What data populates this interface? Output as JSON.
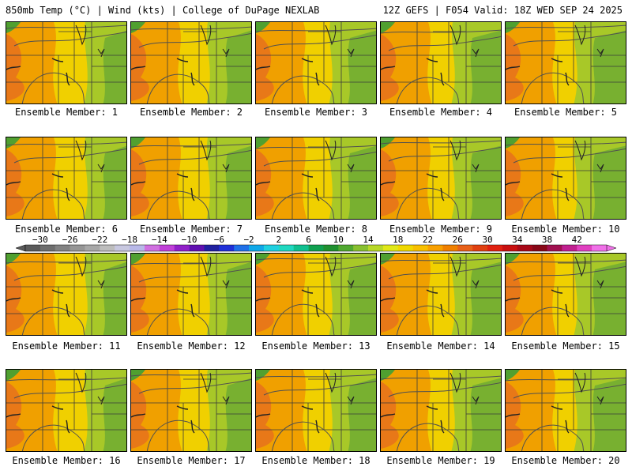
{
  "header": {
    "left": "850mb Temp (°C) | Wind (kts) | College of DuPage NEXLAB",
    "right": "12Z GEFS | F054 Valid: 18Z WED SEP 24 2025"
  },
  "caption_prefix": "Ensemble Member: ",
  "members": [
    1,
    2,
    3,
    4,
    5,
    6,
    7,
    8,
    9,
    10,
    11,
    12,
    13,
    14,
    15,
    16,
    17,
    18,
    19,
    20
  ],
  "colorbar": {
    "tick_labels": [
      "−30",
      "−26",
      "−22",
      "−18",
      "−14",
      "−10",
      "−6",
      "−2",
      "2",
      "6",
      "10",
      "14",
      "18",
      "22",
      "26",
      "30",
      "34",
      "38",
      "42"
    ],
    "range": [
      -32,
      44
    ],
    "step": 2,
    "colors": [
      "#5a5a5a",
      "#6e6e6e",
      "#828282",
      "#969696",
      "#a8a8a8",
      "#bdbdbd",
      "#c8c8e0",
      "#b8b8e8",
      "#d070e0",
      "#c040d8",
      "#9020c8",
      "#6010b0",
      "#2020a0",
      "#2030d8",
      "#2070e8",
      "#10a8e8",
      "#20d0e0",
      "#20d8c0",
      "#10c090",
      "#10a050",
      "#209030",
      "#50a830",
      "#88c030",
      "#b8d828",
      "#e0e818",
      "#f0d800",
      "#f8c000",
      "#f8a000",
      "#f08000",
      "#e86018",
      "#e04010",
      "#e02010",
      "#c81010",
      "#a80818",
      "#880818",
      "#a01050",
      "#c02090",
      "#e040c0",
      "#f070e8"
    ]
  },
  "legend": {
    "colors": {
      "map_line": "#3a3a3a",
      "contour": "#505050"
    }
  }
}
